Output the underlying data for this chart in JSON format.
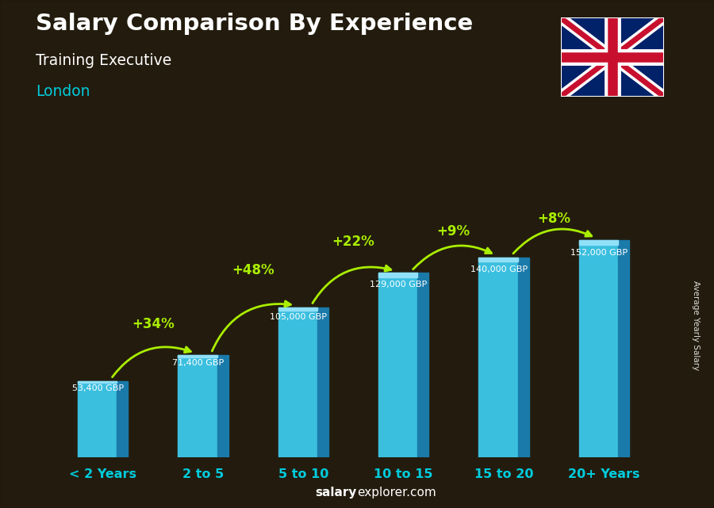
{
  "title": "Salary Comparison By Experience",
  "subtitle": "Training Executive",
  "location": "London",
  "categories": [
    "< 2 Years",
    "2 to 5",
    "5 to 10",
    "10 to 15",
    "15 to 20",
    "20+ Years"
  ],
  "values": [
    53400,
    71400,
    105000,
    129000,
    140000,
    152000
  ],
  "value_labels": [
    "53,400 GBP",
    "71,400 GBP",
    "105,000 GBP",
    "129,000 GBP",
    "140,000 GBP",
    "152,000 GBP"
  ],
  "pct_labels": [
    "+34%",
    "+48%",
    "+22%",
    "+9%",
    "+8%"
  ],
  "bar_color": "#3bbfdf",
  "bar_right_color": "#1a7aaa",
  "bar_top_color": "#90e0f8",
  "bg_color": "#3d3020",
  "overlay_color": "#1e180a",
  "title_color": "#ffffff",
  "subtitle_color": "#ffffff",
  "location_color": "#00ccdd",
  "pct_color": "#aaee00",
  "category_color": "#00ccdd",
  "ylabel_text": "Average Yearly Salary",
  "footer_bold": "salary",
  "footer_normal": "explorer.com",
  "ylim_max": 185000,
  "flag_blue": "#012169",
  "flag_red": "#C8102E",
  "flag_white": "#FFFFFF"
}
